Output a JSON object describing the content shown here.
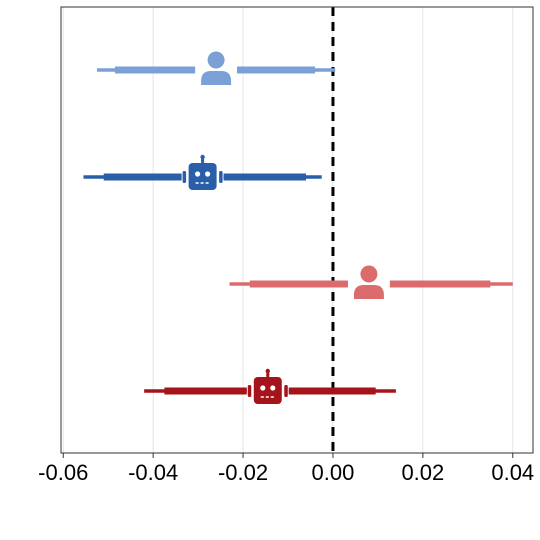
{
  "chart_data": {
    "type": "forest",
    "title": "",
    "xlabel": "",
    "ylabel": "",
    "xlim": [
      -0.0605,
      0.0445
    ],
    "xticks": [
      -0.06,
      -0.04,
      -0.02,
      0.0,
      0.02,
      0.04
    ],
    "xtick_labels": [
      "-0.06",
      "-0.04",
      "-0.02",
      "0.00",
      "0.02",
      "0.04"
    ],
    "reference_line": {
      "x": 0.0,
      "style": "dashed",
      "color": "#000000"
    },
    "grid": "vertical",
    "series": [
      {
        "marker": "person-icon",
        "color": "#7ba0d6",
        "estimate": -0.026,
        "ci_inner": [
          -0.0485,
          -0.004
        ],
        "ci_outer": [
          -0.0525,
          0.0005
        ]
      },
      {
        "marker": "robot-icon",
        "color": "#2a5ea8",
        "estimate": -0.029,
        "ci_inner": [
          -0.051,
          -0.006
        ],
        "ci_outer": [
          -0.0555,
          -0.0025
        ]
      },
      {
        "marker": "person-icon",
        "color": "#dc6b6e",
        "estimate": 0.008,
        "ci_inner": [
          -0.0185,
          0.035
        ],
        "ci_outer": [
          -0.023,
          0.04
        ]
      },
      {
        "marker": "robot-icon",
        "color": "#a5141b",
        "estimate": -0.0145,
        "ci_inner": [
          -0.0375,
          0.0095
        ],
        "ci_outer": [
          -0.042,
          0.014
        ]
      }
    ]
  }
}
